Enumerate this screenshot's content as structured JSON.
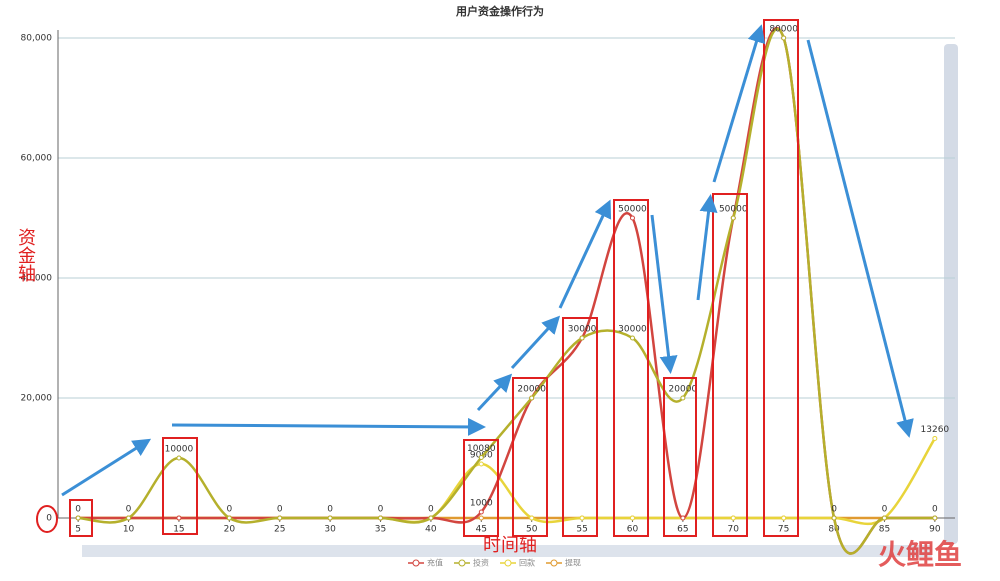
{
  "chart_data": {
    "type": "line",
    "title": "用户资金操作行为",
    "x": [
      5,
      10,
      15,
      20,
      25,
      30,
      35,
      40,
      45,
      50,
      55,
      60,
      65,
      70,
      75,
      80,
      85,
      90
    ],
    "series": [
      {
        "name": "充值",
        "color": "#d2453f",
        "values": [
          0,
          0,
          0,
          0,
          0,
          0,
          0,
          0,
          1000,
          20000,
          30000,
          50000,
          0,
          50000,
          80000,
          0,
          0,
          0
        ]
      },
      {
        "name": "投资",
        "color": "#b5b02c",
        "values": [
          0,
          0,
          10000,
          0,
          0,
          0,
          0,
          0,
          10080,
          20000,
          30000,
          30000,
          20000,
          50000,
          80000,
          0,
          0,
          0
        ]
      },
      {
        "name": "回款",
        "color": "#e8d43a",
        "values": [
          0,
          0,
          0,
          0,
          0,
          0,
          0,
          0,
          9000,
          0,
          0,
          0,
          0,
          0,
          0,
          0,
          0,
          13260
        ]
      },
      {
        "name": "提现",
        "color": "#e09a30",
        "values": [
          0,
          0,
          0,
          0,
          0,
          0,
          0,
          0,
          0,
          0,
          0,
          0,
          0,
          0,
          0,
          0,
          0,
          0
        ]
      }
    ],
    "xlim": [
      3,
      92
    ],
    "xticks": [
      5,
      10,
      15,
      20,
      25,
      30,
      35,
      40,
      45,
      50,
      55,
      60,
      65,
      70,
      75,
      80,
      85,
      90
    ],
    "ylim": [
      0,
      80000
    ],
    "yticks": [
      0,
      {
        "value": 20000,
        "label": "20,000"
      },
      {
        "value": 40000,
        "label": "40,000"
      },
      {
        "value": 60000,
        "label": "60,000"
      },
      {
        "value": 80000,
        "label": "80,000"
      }
    ],
    "grid": true,
    "legend": "bottom",
    "annotations": {
      "y_axis_note": "资金轴",
      "x_axis_note": "时间轴",
      "watermark": "火鲤鱼"
    }
  }
}
